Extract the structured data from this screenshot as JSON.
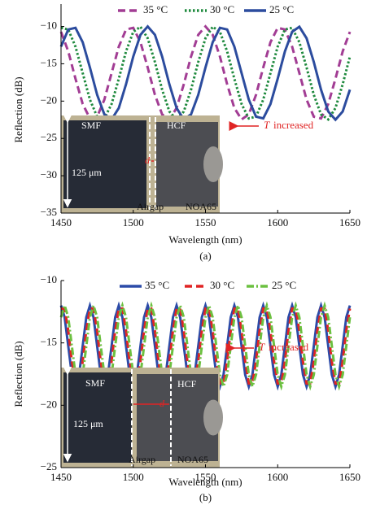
{
  "chart_data": [
    {
      "type": "line",
      "xlabel": "Wavelength (nm)",
      "ylabel": "Reflection (dB)",
      "caption": "(a)",
      "xlim": [
        1450,
        1650
      ],
      "ylim": [
        -35,
        -7
      ],
      "xticks": [
        1450,
        1500,
        1550,
        1600,
        1650
      ],
      "yticks": [
        {
          "value": -10,
          "label": "−10"
        },
        {
          "value": -15,
          "label": "−15"
        },
        {
          "value": -20,
          "label": "−20"
        },
        {
          "value": -25,
          "label": "−25"
        },
        {
          "value": -30,
          "label": "−30"
        },
        {
          "value": -35,
          "label": "−35"
        }
      ],
      "annotation": [
        "T",
        "increased"
      ],
      "inset_labels": [
        "SMF",
        "HCF",
        "125 μm",
        "Airgap",
        "NOA65",
        "d"
      ],
      "x": [
        1450,
        1455,
        1460,
        1465,
        1470,
        1475,
        1480,
        1485,
        1490,
        1495,
        1500,
        1505,
        1510,
        1515,
        1520,
        1525,
        1530,
        1535,
        1540,
        1545,
        1550,
        1555,
        1560,
        1565,
        1570,
        1575,
        1580,
        1585,
        1590,
        1595,
        1600,
        1605,
        1610,
        1615,
        1620,
        1625,
        1630,
        1635,
        1640,
        1645,
        1650
      ],
      "series": [
        {
          "name": "35 °C",
          "color": "#a23d94",
          "style": "dashed",
          "values": [
            -10.72,
            -13.34,
            -17.0,
            -20.39,
            -22.32,
            -22.09,
            -19.8,
            -16.25,
            -12.7,
            -10.41,
            -10.18,
            -12.11,
            -15.5,
            -19.16,
            -21.78,
            -22.46,
            -20.93,
            -17.74,
            -14.03,
            -11.11,
            -10.0,
            -11.11,
            -14.03,
            -17.74,
            -20.93,
            -22.46,
            -21.78,
            -19.16,
            -15.5,
            -12.11,
            -10.18,
            -10.41,
            -12.7,
            -16.25,
            -19.8,
            -22.09,
            -22.32,
            -20.39,
            -17.0,
            -13.34,
            -10.72
          ]
        },
        {
          "name": "30 °C",
          "color": "#1f8a3e",
          "style": "dotted",
          "values": [
            -10.18,
            -10.41,
            -12.7,
            -16.25,
            -19.8,
            -22.09,
            -22.32,
            -20.39,
            -17.0,
            -13.34,
            -10.72,
            -10.04,
            -11.58,
            -14.76,
            -18.47,
            -21.39,
            -22.5,
            -21.39,
            -18.47,
            -14.76,
            -11.58,
            -10.04,
            -10.72,
            -13.34,
            -17.0,
            -20.39,
            -22.32,
            -22.09,
            -19.8,
            -16.25,
            -12.7,
            -10.41,
            -10.18,
            -12.11,
            -15.5,
            -19.16,
            -21.78,
            -22.46,
            -20.93,
            -17.74,
            -14.03
          ]
        },
        {
          "name": "25 °C",
          "color": "#2c4c9e",
          "style": "solid",
          "values": [
            -12.7,
            -10.41,
            -10.18,
            -12.11,
            -15.5,
            -19.16,
            -21.78,
            -22.46,
            -20.93,
            -17.74,
            -14.03,
            -11.11,
            -10.0,
            -11.11,
            -14.03,
            -17.74,
            -20.93,
            -22.46,
            -21.78,
            -19.16,
            -15.5,
            -12.11,
            -10.18,
            -10.41,
            -12.7,
            -16.25,
            -19.8,
            -22.09,
            -22.32,
            -20.39,
            -17.0,
            -13.34,
            -10.72,
            -10.04,
            -11.58,
            -14.76,
            -18.47,
            -21.39,
            -22.5,
            -21.39,
            -18.47
          ]
        }
      ]
    },
    {
      "type": "line",
      "xlabel": "Wavelength (nm)",
      "ylabel": "Reflection (dB)",
      "caption": "(b)",
      "xlim": [
        1450,
        1650
      ],
      "ylim": [
        -25,
        -10
      ],
      "xticks": [
        1450,
        1500,
        1550,
        1600,
        1650
      ],
      "yticks": [
        {
          "value": -10,
          "label": "−10"
        },
        {
          "value": -15,
          "label": "−15"
        },
        {
          "value": -20,
          "label": "−20"
        },
        {
          "value": -25,
          "label": "−25"
        }
      ],
      "annotation": [
        "T",
        "increased"
      ],
      "inset_labels": [
        "SMF",
        "HCF",
        "125 μm",
        "Airgap",
        "NOA65",
        "d"
      ],
      "x": [
        1450,
        1452.5,
        1455,
        1457.5,
        1460,
        1462.5,
        1465,
        1467.5,
        1470,
        1472.5,
        1475,
        1477.5,
        1480,
        1482.5,
        1485,
        1487.5,
        1490,
        1492.5,
        1495,
        1497.5,
        1500,
        1502.5,
        1505,
        1507.5,
        1510,
        1512.5,
        1515,
        1517.5,
        1520,
        1522.5,
        1525,
        1527.5,
        1530,
        1532.5,
        1535,
        1537.5,
        1540,
        1542.5,
        1545,
        1547.5,
        1550,
        1552.5,
        1555,
        1557.5,
        1560,
        1562.5,
        1565,
        1567.5,
        1570,
        1572.5,
        1575,
        1577.5,
        1580,
        1582.5,
        1585,
        1587.5,
        1590,
        1592.5,
        1595,
        1597.5,
        1600,
        1602.5,
        1605,
        1607.5,
        1610,
        1612.5,
        1615,
        1617.5,
        1620,
        1622.5,
        1625,
        1627.5,
        1630,
        1632.5,
        1635,
        1637.5,
        1640,
        1642.5,
        1645,
        1647.5,
        1650
      ],
      "series": [
        {
          "name": "35 °C",
          "color": "#2c4ba8",
          "style": "solid",
          "values": [
            -12,
            -12.95,
            -15.25,
            -17.55,
            -18.5,
            -17.55,
            -15.25,
            -12.95,
            -12,
            -12.95,
            -15.25,
            -17.55,
            -18.5,
            -17.55,
            -15.25,
            -12.95,
            -12,
            -12.95,
            -15.25,
            -17.55,
            -18.5,
            -17.55,
            -15.25,
            -12.95,
            -12,
            -12.95,
            -15.25,
            -17.55,
            -18.5,
            -17.55,
            -15.25,
            -12.95,
            -12,
            -12.95,
            -15.25,
            -17.55,
            -18.5,
            -17.55,
            -15.25,
            -12.95,
            -12,
            -12.95,
            -15.25,
            -17.55,
            -18.5,
            -17.55,
            -15.25,
            -12.95,
            -12,
            -12.95,
            -15.25,
            -17.55,
            -18.5,
            -17.55,
            -15.25,
            -12.95,
            -12,
            -12.95,
            -15.25,
            -17.55,
            -18.5,
            -17.55,
            -15.25,
            -12.95,
            -12,
            -12.95,
            -15.25,
            -17.55,
            -18.5,
            -17.55,
            -15.25,
            -12.95,
            -12,
            -12.95,
            -15.25,
            -17.55,
            -18.5,
            -17.55,
            -15.25,
            -12.95,
            -12
          ]
        },
        {
          "name": "30 °C",
          "color": "#e02424",
          "style": "dashed",
          "values": [
            -12.25,
            -12.25,
            -14.01,
            -16.49,
            -18.25,
            -18.25,
            -16.49,
            -14.01,
            -12.25,
            -12.25,
            -14.01,
            -16.49,
            -18.25,
            -18.25,
            -16.49,
            -14.01,
            -12.25,
            -12.25,
            -14.01,
            -16.49,
            -18.25,
            -18.25,
            -16.49,
            -14.01,
            -12.25,
            -12.25,
            -14.01,
            -16.49,
            -18.25,
            -18.25,
            -16.49,
            -14.01,
            -12.25,
            -12.25,
            -14.01,
            -16.49,
            -18.25,
            -18.25,
            -16.49,
            -14.01,
            -12.25,
            -12.25,
            -14.01,
            -16.49,
            -18.25,
            -18.25,
            -16.49,
            -14.01,
            -12.25,
            -12.25,
            -14.01,
            -16.49,
            -18.25,
            -18.25,
            -16.49,
            -14.01,
            -12.25,
            -12.25,
            -14.01,
            -16.49,
            -18.25,
            -18.25,
            -16.49,
            -14.01,
            -12.25,
            -12.25,
            -14.01,
            -16.49,
            -18.25,
            -18.25,
            -16.49,
            -14.01,
            -12.25,
            -12.25,
            -14.01,
            -16.49,
            -18.25,
            -18.25,
            -16.49,
            -14.01,
            -12.25
          ]
        },
        {
          "name": "25 °C",
          "color": "#6cc040",
          "style": "dashdot",
          "values": [
            -12.95,
            -12,
            -12.95,
            -15.25,
            -17.55,
            -18.5,
            -17.55,
            -15.25,
            -12.95,
            -12,
            -12.95,
            -15.25,
            -17.55,
            -18.5,
            -17.55,
            -15.25,
            -12.95,
            -12,
            -12.95,
            -15.25,
            -17.55,
            -18.5,
            -17.55,
            -15.25,
            -12.95,
            -12,
            -12.95,
            -15.25,
            -17.55,
            -18.5,
            -17.55,
            -15.25,
            -12.95,
            -12,
            -12.95,
            -15.25,
            -17.55,
            -18.5,
            -17.55,
            -15.25,
            -12.95,
            -12,
            -12.95,
            -15.25,
            -17.55,
            -18.5,
            -17.55,
            -15.25,
            -12.95,
            -12,
            -12.95,
            -15.25,
            -17.55,
            -18.5,
            -17.55,
            -15.25,
            -12.95,
            -12,
            -12.95,
            -15.25,
            -17.55,
            -18.5,
            -17.55,
            -15.25,
            -12.95,
            -12,
            -12.95,
            -15.25,
            -17.55,
            -18.5,
            -17.55,
            -15.25,
            -12.95,
            -12,
            -12.95,
            -15.25,
            -17.55,
            -18.5,
            -17.55,
            -15.25,
            -12.95
          ]
        }
      ]
    }
  ]
}
